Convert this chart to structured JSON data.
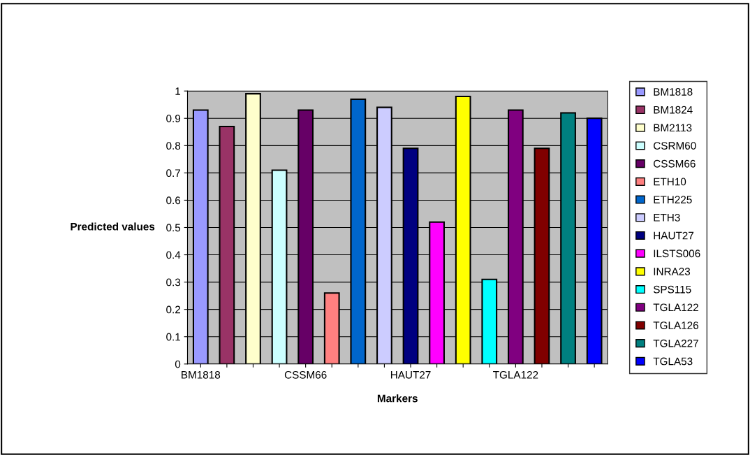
{
  "chart_data": {
    "type": "bar",
    "xlabel": "Markers",
    "ylabel": "Predicted values",
    "categories": [
      "BM1818",
      null,
      null,
      null,
      "CSSM66",
      null,
      null,
      null,
      "HAUT27",
      null,
      null,
      null,
      "TGLA122",
      null,
      null,
      null
    ],
    "series": [
      {
        "name": "BM1818",
        "color": "#9999ff",
        "values": [
          0.93,
          null,
          null,
          null,
          null,
          null,
          null,
          null,
          null,
          null,
          null,
          null,
          null,
          null,
          null,
          null
        ]
      },
      {
        "name": "BM1824",
        "color": "#993366",
        "values": [
          null,
          0.87,
          null,
          null,
          null,
          null,
          null,
          null,
          null,
          null,
          null,
          null,
          null,
          null,
          null,
          null
        ]
      },
      {
        "name": "BM2113",
        "color": "#ffffcc",
        "values": [
          null,
          null,
          0.99,
          null,
          null,
          null,
          null,
          null,
          null,
          null,
          null,
          null,
          null,
          null,
          null,
          null
        ]
      },
      {
        "name": "CSRM60",
        "color": "#ccffff",
        "values": [
          null,
          null,
          null,
          0.71,
          null,
          null,
          null,
          null,
          null,
          null,
          null,
          null,
          null,
          null,
          null,
          null
        ]
      },
      {
        "name": "CSSM66",
        "color": "#660066",
        "values": [
          null,
          null,
          null,
          null,
          0.93,
          null,
          null,
          null,
          null,
          null,
          null,
          null,
          null,
          null,
          null,
          null
        ]
      },
      {
        "name": "ETH10",
        "color": "#ff8080",
        "values": [
          null,
          null,
          null,
          null,
          null,
          0.26,
          null,
          null,
          null,
          null,
          null,
          null,
          null,
          null,
          null,
          null
        ]
      },
      {
        "name": "ETH225",
        "color": "#0066cc",
        "values": [
          null,
          null,
          null,
          null,
          null,
          null,
          0.97,
          null,
          null,
          null,
          null,
          null,
          null,
          null,
          null,
          null
        ]
      },
      {
        "name": "ETH3",
        "color": "#ccccff",
        "values": [
          null,
          null,
          null,
          null,
          null,
          null,
          null,
          0.94,
          null,
          null,
          null,
          null,
          null,
          null,
          null,
          null
        ]
      },
      {
        "name": "HAUT27",
        "color": "#000080",
        "values": [
          null,
          null,
          null,
          null,
          null,
          null,
          null,
          null,
          0.79,
          null,
          null,
          null,
          null,
          null,
          null,
          null
        ]
      },
      {
        "name": "ILSTS006",
        "color": "#ff00ff",
        "values": [
          null,
          null,
          null,
          null,
          null,
          null,
          null,
          null,
          null,
          0.52,
          null,
          null,
          null,
          null,
          null,
          null
        ]
      },
      {
        "name": "INRA23",
        "color": "#ffff00",
        "values": [
          null,
          null,
          null,
          null,
          null,
          null,
          null,
          null,
          null,
          null,
          0.98,
          null,
          null,
          null,
          null,
          null
        ]
      },
      {
        "name": "SPS115",
        "color": "#00ffff",
        "values": [
          null,
          null,
          null,
          null,
          null,
          null,
          null,
          null,
          null,
          null,
          null,
          0.31,
          null,
          null,
          null,
          null
        ]
      },
      {
        "name": "TGLA122",
        "color": "#800080",
        "values": [
          null,
          null,
          null,
          null,
          null,
          null,
          null,
          null,
          null,
          null,
          null,
          null,
          0.93,
          null,
          null,
          null
        ]
      },
      {
        "name": "TGLA126",
        "color": "#800000",
        "values": [
          null,
          null,
          null,
          null,
          null,
          null,
          null,
          null,
          null,
          null,
          null,
          null,
          null,
          0.79,
          null,
          null
        ]
      },
      {
        "name": "TGLA227",
        "color": "#008080",
        "values": [
          null,
          null,
          null,
          null,
          null,
          null,
          null,
          null,
          null,
          null,
          null,
          null,
          null,
          null,
          0.92,
          null
        ]
      },
      {
        "name": "TGLA53",
        "color": "#0000ff",
        "values": [
          null,
          null,
          null,
          null,
          null,
          null,
          null,
          null,
          null,
          null,
          null,
          null,
          null,
          null,
          null,
          0.9
        ]
      }
    ],
    "ylim": [
      0,
      1
    ],
    "yticks": [
      0,
      0.1,
      0.2,
      0.3,
      0.4,
      0.5,
      0.6,
      0.7,
      0.8,
      0.9,
      1
    ],
    "grid": "y",
    "legend": "right"
  }
}
